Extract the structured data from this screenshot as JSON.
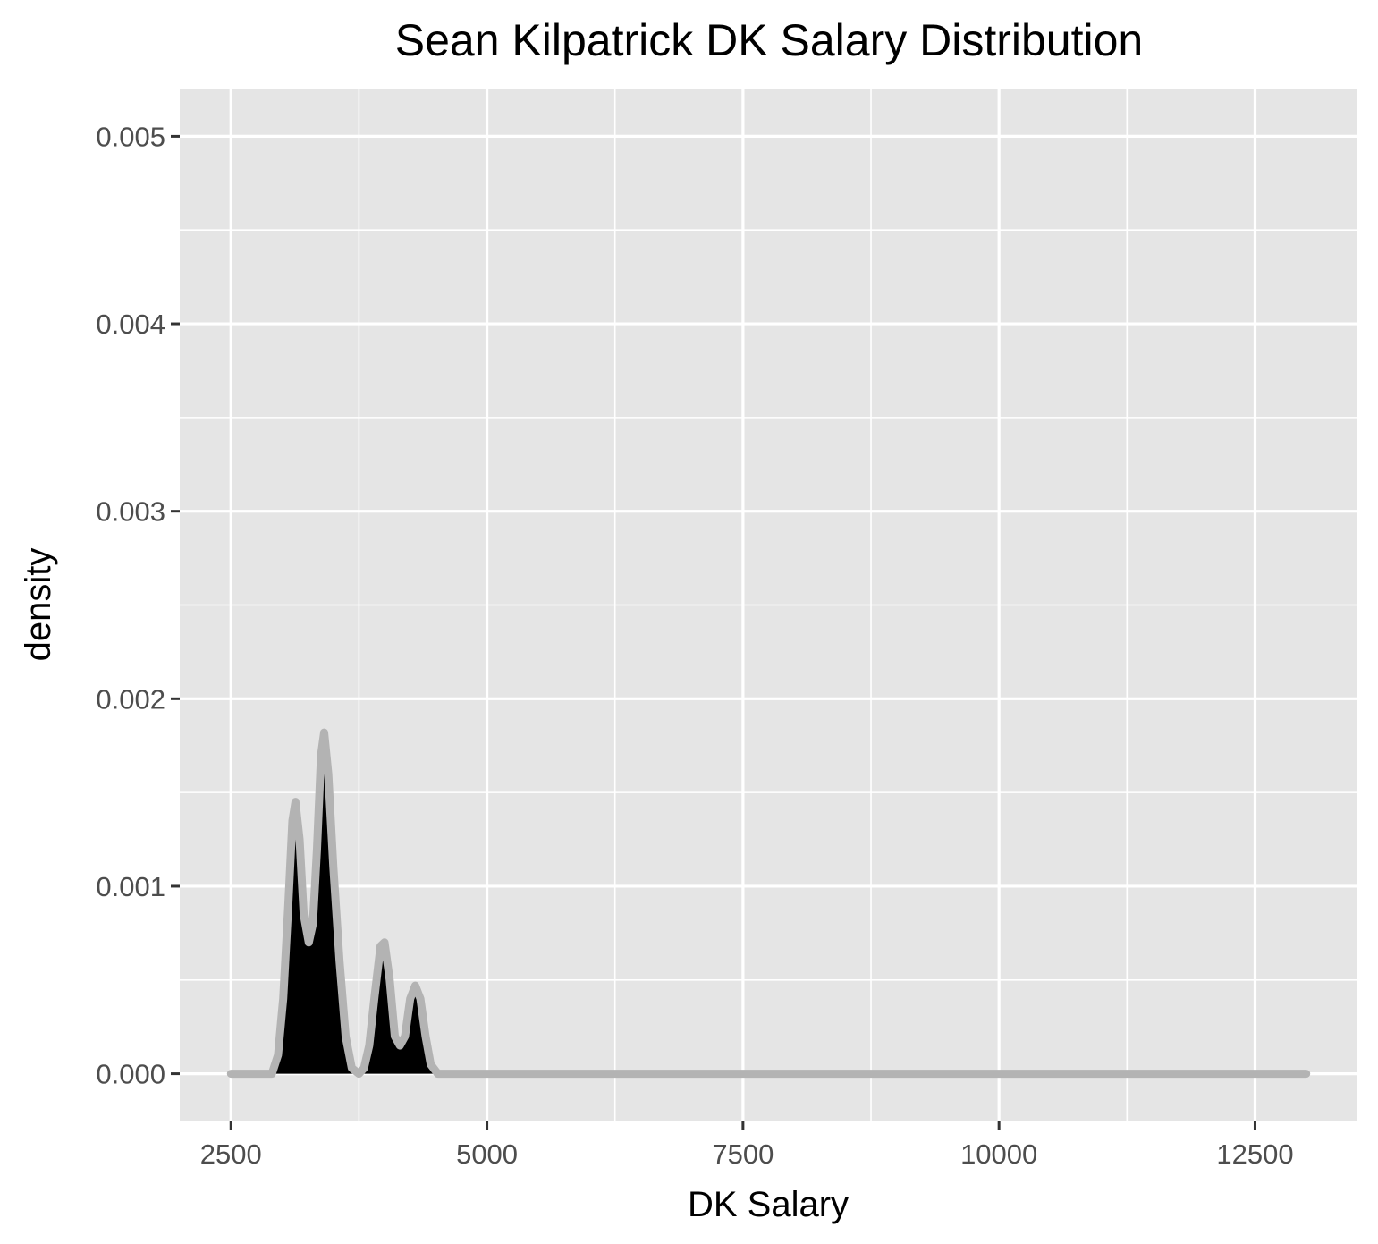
{
  "chart_data": {
    "type": "area",
    "title": "Sean Kilpatrick DK Salary Distribution",
    "xlabel": "DK Salary",
    "ylabel": "density",
    "xlim": [
      2000,
      13500
    ],
    "ylim": [
      -0.00025,
      0.00525
    ],
    "x_ticks": [
      2500,
      5000,
      7500,
      10000,
      12500
    ],
    "x_tick_labels": [
      "2500",
      "5000",
      "7500",
      "10000",
      "12500"
    ],
    "y_ticks": [
      0,
      0.001,
      0.002,
      0.003,
      0.004,
      0.005
    ],
    "y_tick_labels": [
      "0.000",
      "0.001",
      "0.002",
      "0.003",
      "0.004",
      "0.005"
    ],
    "x_minor_gridlines": [
      3750,
      6250,
      8750,
      11250
    ],
    "y_minor_gridlines": [
      0.0005,
      0.0015,
      0.0025,
      0.0035,
      0.0045
    ],
    "grid": true,
    "legend": "none",
    "series": [
      {
        "fill_color": "#000000",
        "outline_color": "#b3b3b3",
        "points": [
          [
            2500,
            0
          ],
          [
            2900,
            0
          ],
          [
            2960,
            0.0001
          ],
          [
            3010,
            0.0004
          ],
          [
            3060,
            0.0009
          ],
          [
            3100,
            0.00135
          ],
          [
            3130,
            0.00145
          ],
          [
            3170,
            0.00125
          ],
          [
            3210,
            0.00085
          ],
          [
            3260,
            0.0007
          ],
          [
            3300,
            0.0008
          ],
          [
            3340,
            0.0012
          ],
          [
            3380,
            0.0017
          ],
          [
            3410,
            0.00182
          ],
          [
            3450,
            0.0016
          ],
          [
            3500,
            0.0011
          ],
          [
            3560,
            0.0006
          ],
          [
            3620,
            0.0002
          ],
          [
            3680,
            3e-05
          ],
          [
            3750,
            0
          ],
          [
            3800,
            3e-05
          ],
          [
            3850,
            0.00015
          ],
          [
            3900,
            0.0004
          ],
          [
            3960,
            0.00068
          ],
          [
            4000,
            0.0007
          ],
          [
            4050,
            0.0005
          ],
          [
            4100,
            0.0002
          ],
          [
            4150,
            0.00015
          ],
          [
            4200,
            0.0002
          ],
          [
            4250,
            0.0004
          ],
          [
            4300,
            0.00047
          ],
          [
            4350,
            0.0004
          ],
          [
            4400,
            0.0002
          ],
          [
            4450,
            5e-05
          ],
          [
            4520,
            0
          ],
          [
            13000,
            0
          ]
        ]
      }
    ]
  }
}
